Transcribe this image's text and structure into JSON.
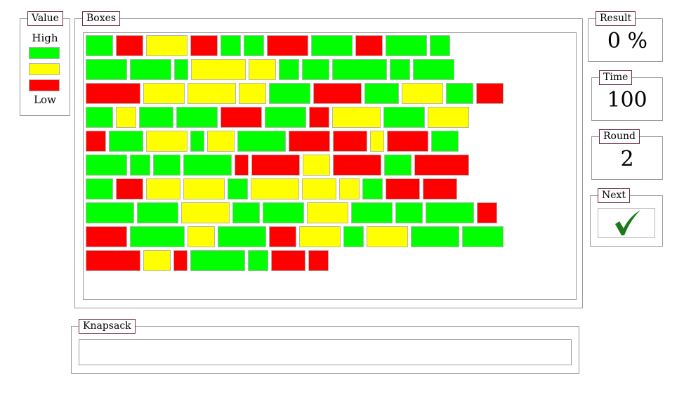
{
  "legend_value": {
    "title": "Value",
    "high_label": "High",
    "low_label": "Low",
    "swatches": [
      "#00ff00",
      "#ffff00",
      "#ff0000"
    ]
  },
  "boxes_panel": {
    "title": "Boxes"
  },
  "knapsack_panel": {
    "title": "Knapsack"
  },
  "result": {
    "title": "Result",
    "value": "0 %"
  },
  "time": {
    "title": "Time",
    "value": "100"
  },
  "round": {
    "title": "Round",
    "value": "2"
  },
  "next": {
    "title": "Next",
    "icon": "checkmark-icon"
  },
  "colors": {
    "high": "#00ff00",
    "medium": "#ffff00",
    "low": "#ff0000",
    "check": "#1a7a1a"
  },
  "box_rows": [
    [
      [
        "g",
        2
      ],
      [
        "r",
        2
      ],
      [
        "y",
        3
      ],
      [
        "r",
        2
      ],
      [
        "g",
        1.5
      ],
      [
        "g",
        1.5
      ],
      [
        "r",
        3
      ],
      [
        "g",
        3
      ],
      [
        "r",
        2
      ],
      [
        "g",
        3
      ],
      [
        "g",
        1.5
      ]
    ],
    [
      [
        "g",
        3
      ],
      [
        "g",
        3
      ],
      [
        "g",
        1
      ],
      [
        "y",
        4
      ],
      [
        "y",
        2
      ],
      [
        "g",
        1.5
      ],
      [
        "g",
        2
      ],
      [
        "g",
        4
      ],
      [
        "g",
        1.5
      ],
      [
        "g",
        3
      ]
    ],
    [
      [
        "r",
        4
      ],
      [
        "y",
        3
      ],
      [
        "y",
        3.5
      ],
      [
        "y",
        2
      ],
      [
        "g",
        3
      ],
      [
        "r",
        3.5
      ],
      [
        "g",
        2.5
      ],
      [
        "y",
        3
      ],
      [
        "g",
        2
      ],
      [
        "r",
        2
      ]
    ],
    [
      [
        "g",
        2
      ],
      [
        "y",
        1.5
      ],
      [
        "g",
        2.5
      ],
      [
        "g",
        3
      ],
      [
        "r",
        3
      ],
      [
        "g",
        3
      ],
      [
        "r",
        1.5
      ],
      [
        "y",
        3.5
      ],
      [
        "g",
        3
      ],
      [
        "y",
        3
      ]
    ],
    [
      [
        "r",
        1.5
      ],
      [
        "g",
        2.5
      ],
      [
        "y",
        3
      ],
      [
        "g",
        1
      ],
      [
        "y",
        2
      ],
      [
        "g",
        3.5
      ],
      [
        "r",
        3
      ],
      [
        "r",
        2.5
      ],
      [
        "y",
        1
      ],
      [
        "r",
        3
      ],
      [
        "g",
        2
      ]
    ],
    [
      [
        "g",
        3
      ],
      [
        "g",
        1.5
      ],
      [
        "g",
        2
      ],
      [
        "g",
        3.5
      ],
      [
        "r",
        1
      ],
      [
        "r",
        3.5
      ],
      [
        "y",
        2
      ],
      [
        "r",
        3.5
      ],
      [
        "g",
        2
      ],
      [
        "r",
        4
      ]
    ],
    [
      [
        "g",
        2
      ],
      [
        "r",
        2
      ],
      [
        "y",
        2.5
      ],
      [
        "y",
        3
      ],
      [
        "g",
        1.5
      ],
      [
        "y",
        3.5
      ],
      [
        "y",
        2.5
      ],
      [
        "y",
        1.5
      ],
      [
        "g",
        1.5
      ],
      [
        "r",
        2.5
      ],
      [
        "r",
        2.5
      ]
    ],
    [
      [
        "g",
        3.5
      ],
      [
        "g",
        3
      ],
      [
        "y",
        3.5
      ],
      [
        "g",
        2
      ],
      [
        "g",
        3
      ],
      [
        "y",
        3
      ],
      [
        "g",
        3
      ],
      [
        "g",
        2
      ],
      [
        "g",
        3.5
      ],
      [
        "r",
        1.5
      ]
    ],
    [
      [
        "r",
        3
      ],
      [
        "g",
        4
      ],
      [
        "y",
        2
      ],
      [
        "g",
        3.5
      ],
      [
        "r",
        2
      ],
      [
        "y",
        3
      ],
      [
        "g",
        1.5
      ],
      [
        "y",
        3
      ],
      [
        "g",
        3.5
      ],
      [
        "g",
        3
      ]
    ],
    [
      [
        "r",
        4
      ],
      [
        "y",
        2
      ],
      [
        "r",
        1
      ],
      [
        "g",
        4
      ],
      [
        "g",
        1.5
      ],
      [
        "r",
        2.5
      ],
      [
        "r",
        1.5
      ]
    ]
  ]
}
